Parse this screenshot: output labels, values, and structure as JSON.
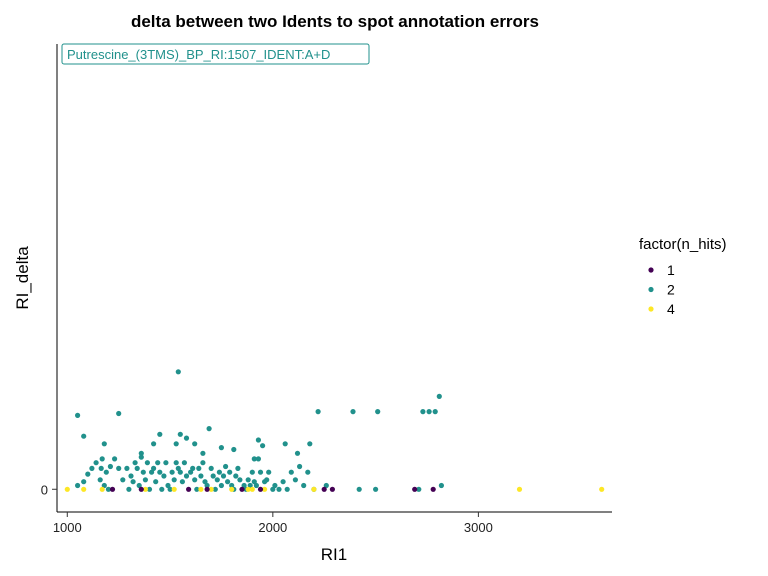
{
  "chart_data": {
    "type": "scatter",
    "title": "delta between two Idents to spot annotation errors",
    "xlabel": "RI1",
    "ylabel": "RI_delta",
    "xlim": [
      950,
      3650
    ],
    "ylim": [
      -1.2,
      23.5
    ],
    "x_ticks": [
      1000,
      2000,
      3000
    ],
    "x_tick_labels": [
      "1000",
      "2000",
      "3000"
    ],
    "y_ticks": [
      0
    ],
    "y_tick_labels": [
      "0"
    ],
    "grid": false,
    "legend": {
      "title": "factor(n_hits)",
      "position": "right",
      "entries": [
        {
          "label": "1",
          "color": "#440154"
        },
        {
          "label": "2",
          "color": "#21918C"
        },
        {
          "label": "4",
          "color": "#FDE725"
        }
      ]
    },
    "annotation": {
      "text": "Putrescine_(3TMS)_BP_RI:1507_IDENT:A+D",
      "position": "top-left",
      "color": "#21918C"
    },
    "series": [
      {
        "name": "1",
        "color": "#440154",
        "points": [
          [
            1220,
            0
          ],
          [
            1360,
            0
          ],
          [
            1590,
            0
          ],
          [
            1680,
            0
          ],
          [
            1850,
            0
          ],
          [
            1940,
            0
          ],
          [
            2250,
            0
          ],
          [
            2290,
            0
          ],
          [
            2690,
            0
          ],
          [
            2780,
            0
          ]
        ]
      },
      {
        "name": "2",
        "color": "#21918C",
        "points": [
          [
            1050,
            0.2
          ],
          [
            1080,
            0.4
          ],
          [
            1100,
            0.8
          ],
          [
            1120,
            1.1
          ],
          [
            1140,
            1.4
          ],
          [
            1160,
            0.5
          ],
          [
            1165,
            1.1
          ],
          [
            1170,
            1.6
          ],
          [
            1180,
            0.2
          ],
          [
            1190,
            0.9
          ],
          [
            1200,
            0
          ],
          [
            1210,
            1.2
          ],
          [
            1230,
            1.6
          ],
          [
            1250,
            1.1
          ],
          [
            1270,
            0.5
          ],
          [
            1290,
            1.1
          ],
          [
            1300,
            0
          ],
          [
            1310,
            0.7
          ],
          [
            1320,
            0.4
          ],
          [
            1330,
            1.4
          ],
          [
            1340,
            1.1
          ],
          [
            1350,
            0.2
          ],
          [
            1360,
            1.7
          ],
          [
            1370,
            0.9
          ],
          [
            1380,
            0.5
          ],
          [
            1390,
            1.4
          ],
          [
            1400,
            0
          ],
          [
            1410,
            0.9
          ],
          [
            1420,
            1.1
          ],
          [
            1430,
            0.4
          ],
          [
            1440,
            1.4
          ],
          [
            1450,
            0.9
          ],
          [
            1460,
            0
          ],
          [
            1470,
            0.7
          ],
          [
            1480,
            1.4
          ],
          [
            1490,
            0.2
          ],
          [
            1500,
            0
          ],
          [
            1510,
            0.9
          ],
          [
            1520,
            0.5
          ],
          [
            1530,
            1.4
          ],
          [
            1540,
            1.1
          ],
          [
            1550,
            0.9
          ],
          [
            1560,
            0.4
          ],
          [
            1570,
            1.4
          ],
          [
            1580,
            0.7
          ],
          [
            1600,
            0.9
          ],
          [
            1610,
            1.1
          ],
          [
            1620,
            0.5
          ],
          [
            1630,
            0
          ],
          [
            1640,
            1.1
          ],
          [
            1650,
            0.7
          ],
          [
            1660,
            1.4
          ],
          [
            1670,
            0.4
          ],
          [
            1680,
            0.2
          ],
          [
            1700,
            1.1
          ],
          [
            1710,
            0.7
          ],
          [
            1720,
            0
          ],
          [
            1730,
            0.5
          ],
          [
            1740,
            0.9
          ],
          [
            1750,
            0.2
          ],
          [
            1760,
            0.7
          ],
          [
            1770,
            1.2
          ],
          [
            1780,
            0.4
          ],
          [
            1790,
            0.9
          ],
          [
            1800,
            0.2
          ],
          [
            1810,
            0
          ],
          [
            1820,
            0.7
          ],
          [
            1830,
            1.1
          ],
          [
            1840,
            0.5
          ],
          [
            1860,
            0.2
          ],
          [
            1870,
            0
          ],
          [
            1880,
            0.5
          ],
          [
            1890,
            0.2
          ],
          [
            1900,
            0.9
          ],
          [
            1910,
            0.4
          ],
          [
            1920,
            0.2
          ],
          [
            1930,
            1.6
          ],
          [
            1940,
            0.9
          ],
          [
            1960,
            0.4
          ],
          [
            1970,
            0.5
          ],
          [
            1980,
            0.9
          ],
          [
            2000,
            0
          ],
          [
            2010,
            0.2
          ],
          [
            2030,
            0
          ],
          [
            2050,
            0.4
          ],
          [
            2070,
            0
          ],
          [
            2090,
            0.9
          ],
          [
            2110,
            0.5
          ],
          [
            2130,
            1.2
          ],
          [
            2150,
            0.2
          ],
          [
            2170,
            0.9
          ],
          [
            2200,
            0
          ],
          [
            2260,
            0.2
          ],
          [
            2420,
            0
          ],
          [
            2500,
            0
          ],
          [
            2710,
            0
          ],
          [
            2820,
            0.2
          ],
          [
            1050,
            3.9
          ],
          [
            1250,
            4.0
          ],
          [
            2220,
            4.1
          ],
          [
            2390,
            4.1
          ],
          [
            2510,
            4.1
          ],
          [
            2730,
            4.1
          ],
          [
            2760,
            4.1
          ],
          [
            2790,
            4.1
          ],
          [
            2810,
            4.9
          ],
          [
            1540,
            6.2
          ],
          [
            1080,
            2.8
          ],
          [
            1180,
            2.4
          ],
          [
            1360,
            1.9
          ],
          [
            1420,
            2.4
          ],
          [
            1450,
            2.9
          ],
          [
            1530,
            2.4
          ],
          [
            1550,
            2.9
          ],
          [
            1580,
            2.7
          ],
          [
            1620,
            2.4
          ],
          [
            1660,
            1.9
          ],
          [
            1690,
            3.2
          ],
          [
            1750,
            2.2
          ],
          [
            1810,
            2.1
          ],
          [
            1910,
            1.6
          ],
          [
            1930,
            2.6
          ],
          [
            1950,
            2.3
          ],
          [
            2060,
            2.4
          ],
          [
            2120,
            1.9
          ],
          [
            2180,
            2.4
          ]
        ]
      },
      {
        "name": "4",
        "color": "#FDE725",
        "points": [
          [
            1000,
            0
          ],
          [
            1080,
            0
          ],
          [
            1170,
            0
          ],
          [
            1380,
            0
          ],
          [
            1520,
            0
          ],
          [
            1650,
            0
          ],
          [
            1700,
            0
          ],
          [
            1800,
            0
          ],
          [
            1880,
            0
          ],
          [
            1900,
            0
          ],
          [
            1960,
            0
          ],
          [
            2200,
            0
          ],
          [
            3200,
            0
          ],
          [
            3600,
            0
          ]
        ]
      }
    ]
  }
}
